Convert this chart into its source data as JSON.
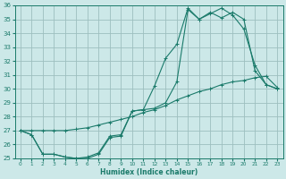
{
  "xlabel": "Humidex (Indice chaleur)",
  "bg_color": "#cce8e8",
  "grid_color": "#9dbfbf",
  "line_color": "#1a7a6a",
  "xlim": [
    -0.5,
    23.5
  ],
  "ylim": [
    25,
    36
  ],
  "xticks": [
    0,
    1,
    2,
    3,
    4,
    5,
    6,
    7,
    8,
    9,
    10,
    11,
    12,
    13,
    14,
    15,
    16,
    17,
    18,
    19,
    20,
    21,
    22,
    23
  ],
  "yticks": [
    25,
    26,
    27,
    28,
    29,
    30,
    31,
    32,
    33,
    34,
    35,
    36
  ],
  "line1_x": [
    0,
    1,
    2,
    3,
    4,
    5,
    6,
    7,
    8,
    9,
    10,
    11,
    12,
    13,
    14,
    15,
    16,
    17,
    18,
    19,
    20,
    21,
    22,
    23
  ],
  "line1_y": [
    27.0,
    26.7,
    25.3,
    25.3,
    25.1,
    25.0,
    25.0,
    25.3,
    26.5,
    26.6,
    28.4,
    28.5,
    28.6,
    29.0,
    30.5,
    35.7,
    35.0,
    35.4,
    35.8,
    35.3,
    34.3,
    31.7,
    30.3,
    30.0
  ],
  "line2_x": [
    0,
    1,
    2,
    3,
    4,
    5,
    6,
    7,
    8,
    9,
    10,
    11,
    12,
    13,
    14,
    15,
    16,
    17,
    18,
    19,
    20,
    21,
    22,
    23
  ],
  "line2_y": [
    27.0,
    27.0,
    27.0,
    27.0,
    27.0,
    27.1,
    27.2,
    27.4,
    27.6,
    27.8,
    28.0,
    28.3,
    28.5,
    28.8,
    29.2,
    29.5,
    29.8,
    30.0,
    30.3,
    30.5,
    30.6,
    30.8,
    30.9,
    30.1
  ],
  "line3_x": [
    0,
    1,
    2,
    3,
    4,
    5,
    6,
    7,
    8,
    9,
    10,
    11,
    12,
    13,
    14,
    15,
    16,
    17,
    18,
    19,
    20,
    21,
    22,
    23
  ],
  "line3_y": [
    27.0,
    26.7,
    25.3,
    25.3,
    25.1,
    25.0,
    25.1,
    25.4,
    26.6,
    26.7,
    28.4,
    28.5,
    30.2,
    32.2,
    33.2,
    35.8,
    35.0,
    35.5,
    35.1,
    35.5,
    35.0,
    31.3,
    30.3,
    30.0
  ]
}
